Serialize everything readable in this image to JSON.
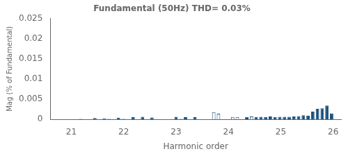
{
  "chart_data": {
    "type": "bar",
    "title": "Fundamental (50Hz) THD= 0.03%",
    "xlabel": "Harmonic order",
    "ylabel": "Mag (% of Fundamental)",
    "x": [
      21.0,
      21.09,
      21.18,
      21.27,
      21.36,
      21.45,
      21.54,
      21.63,
      21.72,
      21.81,
      21.9,
      22.0,
      22.09,
      22.18,
      22.27,
      22.36,
      22.45,
      22.54,
      22.63,
      22.72,
      22.81,
      22.9,
      23.0,
      23.09,
      23.18,
      23.27,
      23.36,
      23.45,
      23.54,
      23.63,
      23.72,
      23.81,
      23.9,
      23.99,
      24.08,
      24.17,
      24.26,
      24.35,
      24.44,
      24.53,
      24.62,
      24.71,
      24.8,
      24.89,
      24.98,
      25.07,
      25.16,
      25.25,
      25.34,
      25.43,
      25.52,
      25.61,
      25.7,
      25.79,
      25.88,
      25.97
    ],
    "values": [
      4e-05,
      4e-05,
      0.0001,
      4e-05,
      4e-05,
      0.00035,
      4e-05,
      0.00025,
      0.0001,
      4e-05,
      0.0004,
      0.0001,
      4e-05,
      0.00055,
      4e-05,
      0.00065,
      4e-05,
      0.00045,
      4e-05,
      4e-05,
      4e-05,
      4e-05,
      0.00065,
      0.0001,
      0.00055,
      4e-05,
      0.00055,
      4e-05,
      4e-05,
      4e-05,
      0.0018,
      0.0014,
      4e-05,
      4e-05,
      0.0006,
      0.0006,
      4e-05,
      0.0006,
      0.0007,
      0.0006,
      0.00065,
      0.0006,
      0.0007,
      0.0006,
      0.00065,
      0.00065,
      0.00065,
      0.0007,
      0.0008,
      0.001,
      0.0009,
      0.0019,
      0.0026,
      0.00275,
      0.0034,
      0.0015
    ],
    "color": "#1a4f7a",
    "colors": [
      "#1a4f7a",
      "#1a4f7a",
      "#ffffff",
      "#1a4f7a",
      "#1a4f7a",
      "#1a4f7a",
      "#1a4f7a",
      "#1a4f7a",
      "#1a4f7a",
      "#1a4f7a",
      "#1a4f7a",
      "#1a4f7a",
      "#1a4f7a",
      "#1a4f7a",
      "#1a4f7a",
      "#1a4f7a",
      "#1a4f7a",
      "#1a4f7a",
      "#1a4f7a",
      "#1a4f7a",
      "#1a4f7a",
      "#1a4f7a",
      "#1a4f7a",
      "#1a4f7a",
      "#1a4f7a",
      "#1a4f7a",
      "#1a4f7a",
      "#1a4f7a",
      "#1a4f7a",
      "#1a4f7a",
      "#ffffff",
      "#ffffff",
      "#1a4f7a",
      "#1a4f7a",
      "#ffffff",
      "#ffffff",
      "#1a4f7a",
      "#1a4f7a",
      "#ffffff",
      "#1a4f7a",
      "#1a4f7a",
      "#1a4f7a",
      "#1a4f7a",
      "#1a4f7a",
      "#1a4f7a",
      "#1a4f7a",
      "#1a4f7a",
      "#1a4f7a",
      "#1a4f7a",
      "#1a4f7a",
      "#1a4f7a",
      "#1a4f7a",
      "#1a4f7a",
      "#1a4f7a",
      "#1a4f7a",
      "#1a4f7a"
    ],
    "xlim": [
      20.6,
      26.15
    ],
    "xticks": [
      21,
      22,
      23,
      24,
      25,
      26
    ],
    "ylim": [
      0,
      0.025
    ],
    "yticks": [
      0,
      0.005,
      0.01,
      0.015,
      0.02,
      0.025
    ],
    "grid": false
  }
}
